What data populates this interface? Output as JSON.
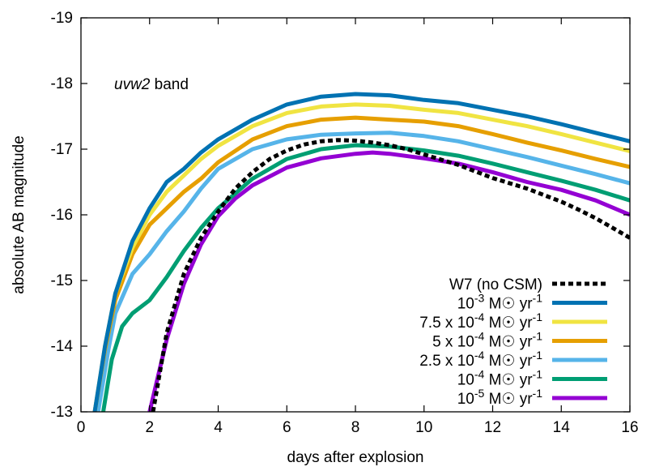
{
  "chart_data": {
    "type": "line",
    "title": "",
    "xlabel": "days after explosion",
    "ylabel": "absolute AB magnitude",
    "xlim": [
      0,
      16
    ],
    "ylim": [
      -13,
      -19
    ],
    "y_inverted": true,
    "grid": false,
    "legend_position": "bottom-right",
    "x_ticks": [
      "0",
      "2",
      "4",
      "6",
      "8",
      "10",
      "12",
      "14",
      "16"
    ],
    "y_ticks": [
      "-13",
      "-14",
      "-15",
      "-16",
      "-17",
      "-18",
      "-19"
    ],
    "annotation": {
      "italic": "uvw2",
      "plain": " band"
    },
    "series": [
      {
        "name": "W7 (no CSM)",
        "label_parts": [
          {
            "t": "W7 (no CSM)"
          }
        ],
        "color": "#000000",
        "dashed": true,
        "x": [
          2.1,
          2.5,
          3.0,
          3.5,
          4.0,
          4.5,
          5.0,
          5.5,
          6.0,
          6.5,
          7.0,
          7.5,
          8.0,
          8.5,
          9.0,
          9.5,
          10.0,
          10.5,
          11.0,
          11.5,
          12.0,
          12.5,
          13.0,
          13.5,
          14.0,
          14.5,
          15.0,
          15.5,
          16.0
        ],
        "y": [
          -13.0,
          -14.2,
          -15.1,
          -15.65,
          -16.05,
          -16.4,
          -16.65,
          -16.85,
          -16.98,
          -17.07,
          -17.12,
          -17.14,
          -17.13,
          -17.1,
          -17.06,
          -17.0,
          -16.92,
          -16.84,
          -16.76,
          -16.66,
          -16.56,
          -16.48,
          -16.4,
          -16.3,
          -16.2,
          -16.08,
          -15.95,
          -15.8,
          -15.65
        ]
      },
      {
        "name": "10^-3 M☉ yr^-1",
        "label_parts": [
          {
            "t": "10"
          },
          {
            "t": "-3",
            "sup": true
          },
          {
            "t": " M☉ yr"
          },
          {
            "t": "-1",
            "sup": true
          }
        ],
        "color": "#0072b2",
        "dashed": false,
        "x": [
          0.4,
          0.7,
          1.0,
          1.5,
          2.0,
          2.5,
          3.0,
          3.5,
          4.0,
          5.0,
          6.0,
          7.0,
          8.0,
          9.0,
          10.0,
          11.0,
          12.0,
          13.0,
          14.0,
          15.0,
          16.0
        ],
        "y": [
          -13.0,
          -14.0,
          -14.8,
          -15.6,
          -16.1,
          -16.5,
          -16.7,
          -16.95,
          -17.15,
          -17.45,
          -17.68,
          -17.8,
          -17.84,
          -17.82,
          -17.75,
          -17.7,
          -17.6,
          -17.5,
          -17.38,
          -17.25,
          -17.12
        ]
      },
      {
        "name": "7.5 x 10^-4 M☉ yr^-1",
        "label_parts": [
          {
            "t": "7.5 x 10"
          },
          {
            "t": "-4",
            "sup": true
          },
          {
            "t": " M☉ yr"
          },
          {
            "t": "-1",
            "sup": true
          }
        ],
        "color": "#f0e442",
        "dashed": false,
        "x": [
          0.4,
          0.7,
          1.0,
          1.5,
          2.0,
          2.5,
          3.0,
          3.5,
          4.0,
          5.0,
          6.0,
          7.0,
          8.0,
          9.0,
          10.0,
          11.0,
          12.0,
          13.0,
          14.0,
          15.0,
          16.0
        ],
        "y": [
          -13.0,
          -14.0,
          -14.8,
          -15.5,
          -16.0,
          -16.35,
          -16.6,
          -16.85,
          -17.05,
          -17.35,
          -17.55,
          -17.65,
          -17.68,
          -17.66,
          -17.6,
          -17.55,
          -17.45,
          -17.35,
          -17.23,
          -17.1,
          -16.97
        ]
      },
      {
        "name": "5 x 10^-4 M☉ yr^-1",
        "label_parts": [
          {
            "t": "5 x 10"
          },
          {
            "t": "-4",
            "sup": true
          },
          {
            "t": " M☉ yr"
          },
          {
            "t": "-1",
            "sup": true
          }
        ],
        "color": "#e69f00",
        "dashed": false,
        "x": [
          0.4,
          0.7,
          1.0,
          1.5,
          2.0,
          2.5,
          3.0,
          3.5,
          4.0,
          5.0,
          6.0,
          7.0,
          8.0,
          9.0,
          10.0,
          11.0,
          12.0,
          13.0,
          14.0,
          15.0,
          16.0
        ],
        "y": [
          -13.0,
          -13.95,
          -14.7,
          -15.4,
          -15.85,
          -16.1,
          -16.35,
          -16.55,
          -16.8,
          -17.15,
          -17.35,
          -17.45,
          -17.48,
          -17.45,
          -17.42,
          -17.35,
          -17.23,
          -17.1,
          -16.98,
          -16.85,
          -16.73
        ]
      },
      {
        "name": "2.5 x 10^-4 M☉ yr^-1",
        "label_parts": [
          {
            "t": "2.5 x 10"
          },
          {
            "t": "-4",
            "sup": true
          },
          {
            "t": " M☉ yr"
          },
          {
            "t": "-1",
            "sup": true
          }
        ],
        "color": "#56b4e9",
        "dashed": false,
        "x": [
          0.5,
          0.8,
          1.0,
          1.5,
          2.0,
          2.5,
          3.0,
          3.5,
          4.0,
          5.0,
          6.0,
          7.0,
          8.0,
          9.0,
          10.0,
          11.0,
          12.0,
          13.0,
          14.0,
          15.0,
          16.0
        ],
        "y": [
          -13.0,
          -13.95,
          -14.5,
          -15.1,
          -15.4,
          -15.75,
          -16.05,
          -16.4,
          -16.7,
          -17.0,
          -17.15,
          -17.22,
          -17.24,
          -17.25,
          -17.2,
          -17.12,
          -17.0,
          -16.88,
          -16.75,
          -16.62,
          -16.48
        ]
      },
      {
        "name": "10^-4 M☉ yr^-1",
        "label_parts": [
          {
            "t": "10"
          },
          {
            "t": "-4",
            "sup": true
          },
          {
            "t": " M☉ yr"
          },
          {
            "t": "-1",
            "sup": true
          }
        ],
        "color": "#009e73",
        "dashed": false,
        "x": [
          0.65,
          0.9,
          1.2,
          1.5,
          2.0,
          2.5,
          3.0,
          3.5,
          4.0,
          5.0,
          6.0,
          7.0,
          8.0,
          9.0,
          10.0,
          11.0,
          12.0,
          13.0,
          14.0,
          15.0,
          16.0
        ],
        "y": [
          -13.0,
          -13.8,
          -14.3,
          -14.5,
          -14.7,
          -15.05,
          -15.45,
          -15.8,
          -16.1,
          -16.55,
          -16.85,
          -17.0,
          -17.06,
          -17.04,
          -16.98,
          -16.9,
          -16.78,
          -16.65,
          -16.52,
          -16.38,
          -16.22
        ]
      },
      {
        "name": "10^-5 M☉ yr^-1",
        "label_parts": [
          {
            "t": "10"
          },
          {
            "t": "-5",
            "sup": true
          },
          {
            "t": " M☉ yr"
          },
          {
            "t": "-1",
            "sup": true
          }
        ],
        "color": "#9400d3",
        "dashed": false,
        "x": [
          2.0,
          2.5,
          3.0,
          3.5,
          4.0,
          4.5,
          5.0,
          6.0,
          7.0,
          8.0,
          8.5,
          9.0,
          10.0,
          11.0,
          12.0,
          13.0,
          14.0,
          15.0,
          16.0
        ],
        "y": [
          -13.0,
          -14.1,
          -14.95,
          -15.55,
          -15.98,
          -16.25,
          -16.45,
          -16.72,
          -16.86,
          -16.93,
          -16.95,
          -16.93,
          -16.86,
          -16.78,
          -16.65,
          -16.5,
          -16.38,
          -16.22,
          -16.0
        ]
      }
    ]
  }
}
